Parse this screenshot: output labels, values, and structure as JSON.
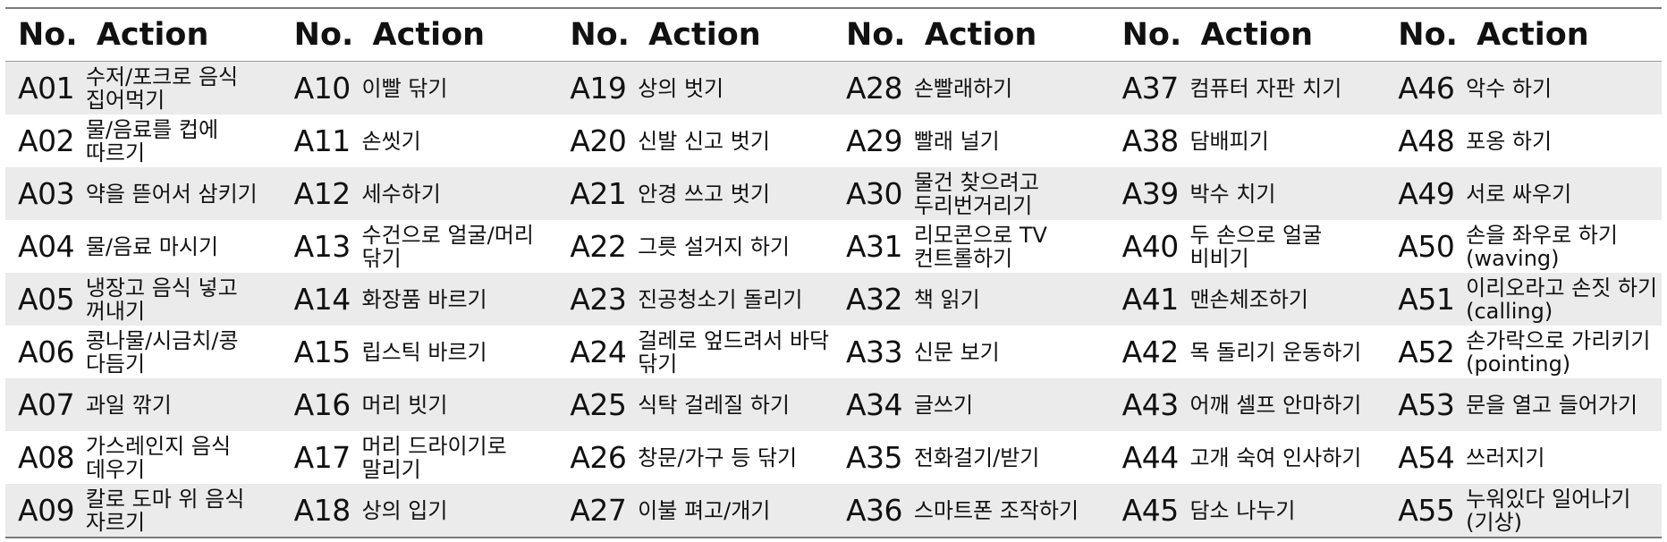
{
  "header": {
    "no_label": "No.",
    "action_label": "Action"
  },
  "rows": [
    [
      [
        "A01",
        "수저/포크로 음식 집어먹기"
      ],
      [
        "A10",
        "이빨 닦기"
      ],
      [
        "A19",
        "상의 벗기"
      ],
      [
        "A28",
        "손빨래하기"
      ],
      [
        "A37",
        "컴퓨터 자판 치기"
      ],
      [
        "A46",
        "악수 하기"
      ]
    ],
    [
      [
        "A02",
        "물/음료를 컵에 따르기"
      ],
      [
        "A11",
        "손씻기"
      ],
      [
        "A20",
        "신발 신고 벗기"
      ],
      [
        "A29",
        "빨래 널기"
      ],
      [
        "A38",
        "담배피기"
      ],
      [
        "A48",
        "포옹 하기"
      ]
    ],
    [
      [
        "A03",
        "약을 뜯어서 삼키기"
      ],
      [
        "A12",
        "세수하기"
      ],
      [
        "A21",
        "안경 쓰고 벗기"
      ],
      [
        "A30",
        "물건 찾으려고 두리번거리기"
      ],
      [
        "A39",
        "박수 치기"
      ],
      [
        "A49",
        "서로 싸우기"
      ]
    ],
    [
      [
        "A04",
        "물/음료 마시기"
      ],
      [
        "A13",
        "수건으로 얼굴/머리 닦기"
      ],
      [
        "A22",
        "그릇 설거지 하기"
      ],
      [
        "A31",
        "리모콘으로 TV 컨트롤하기"
      ],
      [
        "A40",
        "두 손으로 얼굴 비비기"
      ],
      [
        "A50",
        "손을 좌우로 하기 (waving)"
      ]
    ],
    [
      [
        "A05",
        "냉장고 음식 넣고 꺼내기"
      ],
      [
        "A14",
        "화장품 바르기"
      ],
      [
        "A23",
        "진공청소기 돌리기"
      ],
      [
        "A32",
        "책 읽기"
      ],
      [
        "A41",
        "맨손체조하기"
      ],
      [
        "A51",
        "이리오라고 손짓 하기 (calling)"
      ]
    ],
    [
      [
        "A06",
        "콩나물/시금치/콩 다듬기"
      ],
      [
        "A15",
        "립스틱 바르기"
      ],
      [
        "A24",
        "걸레로 엎드려서 바닥 닦기"
      ],
      [
        "A33",
        "신문 보기"
      ],
      [
        "A42",
        "목 돌리기 운동하기"
      ],
      [
        "A52",
        "손가락으로 가리키기 (pointing)"
      ]
    ],
    [
      [
        "A07",
        "과일 깎기"
      ],
      [
        "A16",
        "머리 빗기"
      ],
      [
        "A25",
        "식탁 걸레질 하기"
      ],
      [
        "A34",
        "글쓰기"
      ],
      [
        "A43",
        "어깨 셀프 안마하기"
      ],
      [
        "A53",
        "문을 열고 들어가기"
      ]
    ],
    [
      [
        "A08",
        "가스레인지 음식 데우기"
      ],
      [
        "A17",
        "머리 드라이기로 말리기"
      ],
      [
        "A26",
        "창문/가구 등 닦기"
      ],
      [
        "A35",
        "전화걸기/받기"
      ],
      [
        "A44",
        "고개 숙여 인사하기"
      ],
      [
        "A54",
        "쓰러지기"
      ]
    ],
    [
      [
        "A09",
        "칼로 도마 위 음식 자르기"
      ],
      [
        "A18",
        "상의 입기"
      ],
      [
        "A27",
        "이불 펴고/개기"
      ],
      [
        "A36",
        "스마트폰 조작하기"
      ],
      [
        "A45",
        "담소 나누기"
      ],
      [
        "A55",
        "누워있다 일어나기 (기상)"
      ]
    ]
  ]
}
